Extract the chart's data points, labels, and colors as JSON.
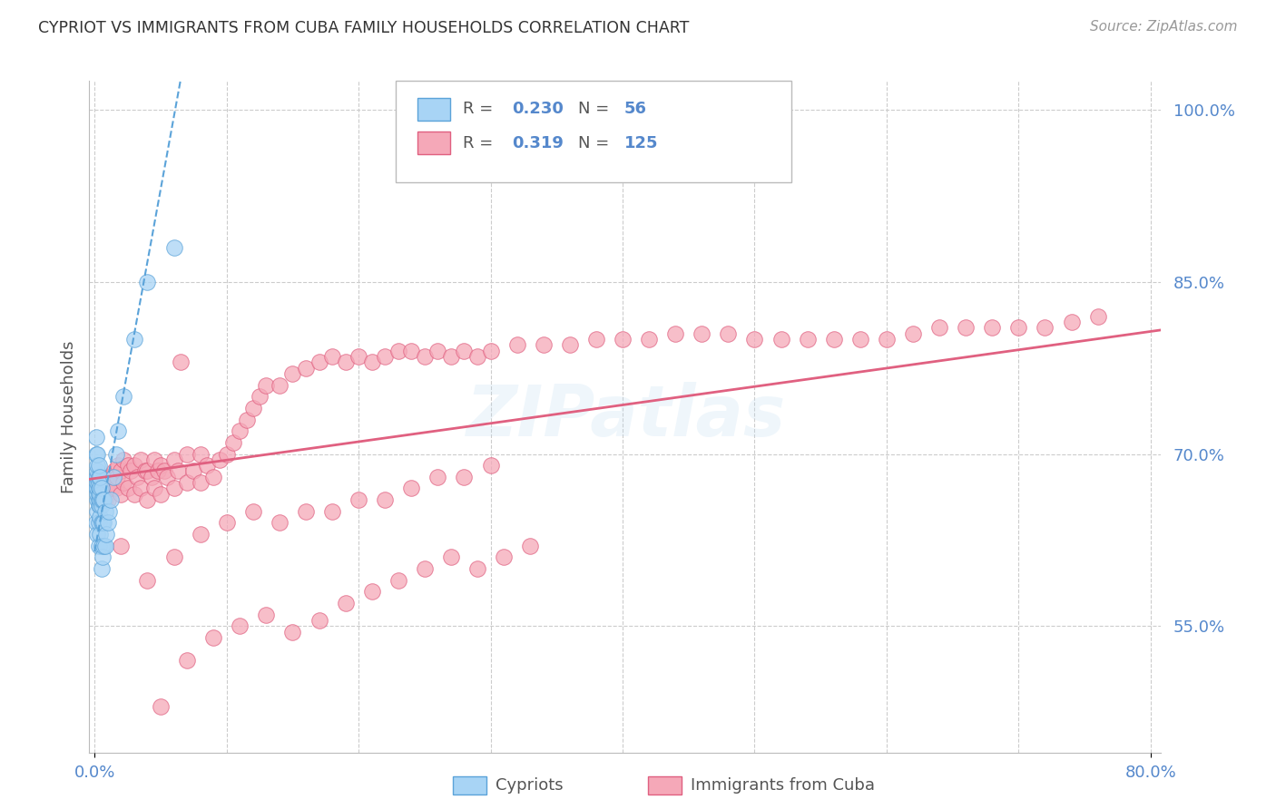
{
  "title": "CYPRIOT VS IMMIGRANTS FROM CUBA FAMILY HOUSEHOLDS CORRELATION CHART",
  "source": "Source: ZipAtlas.com",
  "ylabel": "Family Households",
  "ytick_labels": [
    "100.0%",
    "85.0%",
    "70.0%",
    "55.0%"
  ],
  "ytick_values": [
    1.0,
    0.85,
    0.7,
    0.55
  ],
  "ymin": 0.44,
  "ymax": 1.025,
  "xmin": -0.004,
  "xmax": 0.808,
  "blue_R": 0.23,
  "blue_N": 56,
  "pink_R": 0.319,
  "pink_N": 125,
  "legend_label_blue": "Cypriots",
  "legend_label_pink": "Immigrants from Cuba",
  "dot_color_blue": "#a8d4f5",
  "dot_color_pink": "#f5a8b8",
  "line_color_blue": "#5ba3d9",
  "line_color_pink": "#e06080",
  "axis_color": "#5588cc",
  "watermark": "ZIPatlas",
  "background_color": "#ffffff",
  "grid_color": "#cccccc",
  "blue_x": [
    0.001,
    0.001,
    0.001,
    0.001,
    0.001,
    0.002,
    0.002,
    0.002,
    0.002,
    0.002,
    0.002,
    0.002,
    0.002,
    0.002,
    0.002,
    0.003,
    0.003,
    0.003,
    0.003,
    0.003,
    0.003,
    0.003,
    0.003,
    0.003,
    0.004,
    0.004,
    0.004,
    0.004,
    0.004,
    0.004,
    0.004,
    0.005,
    0.005,
    0.005,
    0.005,
    0.005,
    0.005,
    0.006,
    0.006,
    0.006,
    0.007,
    0.007,
    0.007,
    0.008,
    0.008,
    0.009,
    0.01,
    0.011,
    0.012,
    0.014,
    0.016,
    0.018,
    0.022,
    0.03,
    0.04,
    0.06
  ],
  "blue_y": [
    0.64,
    0.67,
    0.68,
    0.7,
    0.715,
    0.63,
    0.65,
    0.66,
    0.665,
    0.67,
    0.675,
    0.68,
    0.685,
    0.69,
    0.7,
    0.62,
    0.64,
    0.655,
    0.66,
    0.665,
    0.67,
    0.675,
    0.68,
    0.69,
    0.63,
    0.645,
    0.655,
    0.66,
    0.665,
    0.67,
    0.68,
    0.6,
    0.62,
    0.64,
    0.655,
    0.66,
    0.67,
    0.61,
    0.64,
    0.66,
    0.62,
    0.64,
    0.66,
    0.62,
    0.65,
    0.63,
    0.64,
    0.65,
    0.66,
    0.68,
    0.7,
    0.72,
    0.75,
    0.8,
    0.85,
    0.88
  ],
  "pink_x": [
    0.005,
    0.007,
    0.008,
    0.009,
    0.01,
    0.01,
    0.012,
    0.013,
    0.014,
    0.015,
    0.016,
    0.017,
    0.018,
    0.02,
    0.02,
    0.022,
    0.022,
    0.025,
    0.025,
    0.027,
    0.03,
    0.03,
    0.032,
    0.035,
    0.035,
    0.038,
    0.04,
    0.04,
    0.043,
    0.045,
    0.045,
    0.048,
    0.05,
    0.05,
    0.053,
    0.055,
    0.06,
    0.06,
    0.063,
    0.065,
    0.07,
    0.07,
    0.075,
    0.08,
    0.08,
    0.085,
    0.09,
    0.095,
    0.1,
    0.105,
    0.11,
    0.115,
    0.12,
    0.125,
    0.13,
    0.14,
    0.15,
    0.16,
    0.17,
    0.18,
    0.19,
    0.2,
    0.21,
    0.22,
    0.23,
    0.24,
    0.25,
    0.26,
    0.27,
    0.28,
    0.29,
    0.3,
    0.32,
    0.34,
    0.36,
    0.38,
    0.4,
    0.42,
    0.44,
    0.46,
    0.48,
    0.5,
    0.52,
    0.54,
    0.56,
    0.58,
    0.6,
    0.62,
    0.64,
    0.66,
    0.68,
    0.7,
    0.72,
    0.74,
    0.76,
    0.02,
    0.04,
    0.06,
    0.08,
    0.1,
    0.12,
    0.14,
    0.16,
    0.18,
    0.2,
    0.22,
    0.24,
    0.26,
    0.28,
    0.3,
    0.05,
    0.07,
    0.09,
    0.11,
    0.13,
    0.15,
    0.17,
    0.19,
    0.21,
    0.23,
    0.25,
    0.27,
    0.29,
    0.31,
    0.33
  ],
  "pink_y": [
    0.68,
    0.665,
    0.66,
    0.67,
    0.66,
    0.68,
    0.675,
    0.67,
    0.68,
    0.685,
    0.67,
    0.68,
    0.69,
    0.665,
    0.685,
    0.675,
    0.695,
    0.67,
    0.69,
    0.685,
    0.665,
    0.69,
    0.68,
    0.67,
    0.695,
    0.685,
    0.66,
    0.685,
    0.68,
    0.67,
    0.695,
    0.685,
    0.665,
    0.69,
    0.685,
    0.68,
    0.67,
    0.695,
    0.685,
    0.78,
    0.675,
    0.7,
    0.685,
    0.675,
    0.7,
    0.69,
    0.68,
    0.695,
    0.7,
    0.71,
    0.72,
    0.73,
    0.74,
    0.75,
    0.76,
    0.76,
    0.77,
    0.775,
    0.78,
    0.785,
    0.78,
    0.785,
    0.78,
    0.785,
    0.79,
    0.79,
    0.785,
    0.79,
    0.785,
    0.79,
    0.785,
    0.79,
    0.795,
    0.795,
    0.795,
    0.8,
    0.8,
    0.8,
    0.805,
    0.805,
    0.805,
    0.8,
    0.8,
    0.8,
    0.8,
    0.8,
    0.8,
    0.805,
    0.81,
    0.81,
    0.81,
    0.81,
    0.81,
    0.815,
    0.82,
    0.62,
    0.59,
    0.61,
    0.63,
    0.64,
    0.65,
    0.64,
    0.65,
    0.65,
    0.66,
    0.66,
    0.67,
    0.68,
    0.68,
    0.69,
    0.48,
    0.52,
    0.54,
    0.55,
    0.56,
    0.545,
    0.555,
    0.57,
    0.58,
    0.59,
    0.6,
    0.61,
    0.6,
    0.61,
    0.62
  ],
  "pink_line_x0": -0.004,
  "pink_line_x1": 0.808,
  "pink_line_y0": 0.678,
  "pink_line_y1": 0.808,
  "blue_line_x0": 0.0,
  "blue_line_x1": 0.065,
  "blue_line_y0": 0.615,
  "blue_line_y1": 1.025
}
